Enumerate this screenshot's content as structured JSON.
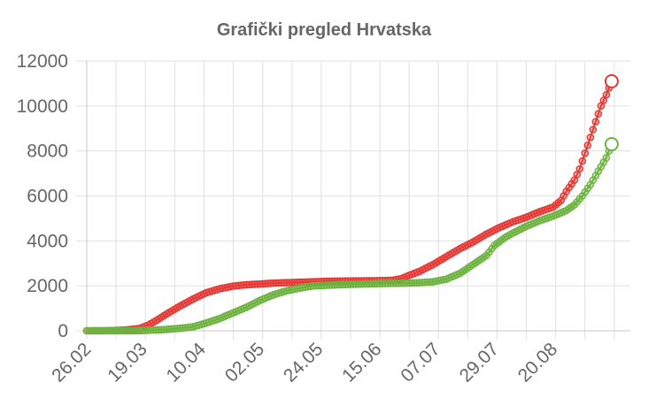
{
  "chart_data": {
    "type": "line",
    "title": "Grafički pregled Hrvatska",
    "xlabel": "",
    "ylabel": "",
    "ylim": [
      0,
      12000
    ],
    "yticks": [
      "0",
      "2000",
      "4000",
      "6000",
      "8000",
      "10000",
      "12000"
    ],
    "x_tick_labels": [
      "26.02",
      "19.03",
      "10.04",
      "02.05",
      "24.05",
      "15.06",
      "07.07",
      "29.07",
      "20.08"
    ],
    "x_tick_day_index": [
      0,
      21,
      43,
      65,
      87,
      109,
      131,
      153,
      175
    ],
    "x_day_count": 184,
    "grid": true,
    "legend": "none",
    "series": [
      {
        "color": "#e53935",
        "points": [
          [
            0,
            0
          ],
          [
            5,
            2
          ],
          [
            10,
            10
          ],
          [
            15,
            40
          ],
          [
            20,
            110
          ],
          [
            23,
            250
          ],
          [
            26,
            450
          ],
          [
            30,
            750
          ],
          [
            35,
            1100
          ],
          [
            40,
            1420
          ],
          [
            45,
            1700
          ],
          [
            50,
            1870
          ],
          [
            55,
            1990
          ],
          [
            60,
            2050
          ],
          [
            65,
            2080
          ],
          [
            70,
            2120
          ],
          [
            80,
            2160
          ],
          [
            90,
            2200
          ],
          [
            100,
            2220
          ],
          [
            110,
            2230
          ],
          [
            115,
            2250
          ],
          [
            118,
            2320
          ],
          [
            120,
            2420
          ],
          [
            125,
            2650
          ],
          [
            130,
            2950
          ],
          [
            135,
            3300
          ],
          [
            140,
            3650
          ],
          [
            145,
            3950
          ],
          [
            150,
            4300
          ],
          [
            155,
            4600
          ],
          [
            160,
            4850
          ],
          [
            165,
            5050
          ],
          [
            170,
            5300
          ],
          [
            175,
            5500
          ],
          [
            178,
            5800
          ],
          [
            180,
            6200
          ],
          [
            183,
            6700
          ],
          [
            185,
            7200
          ],
          [
            187,
            7900
          ],
          [
            189,
            8600
          ],
          [
            191,
            9300
          ],
          [
            193,
            10000
          ],
          [
            195,
            10500
          ],
          [
            197,
            11100
          ]
        ]
      },
      {
        "color": "#6db33f",
        "points": [
          [
            0,
            0
          ],
          [
            10,
            0
          ],
          [
            20,
            5
          ],
          [
            25,
            30
          ],
          [
            30,
            60
          ],
          [
            35,
            110
          ],
          [
            40,
            180
          ],
          [
            45,
            350
          ],
          [
            50,
            550
          ],
          [
            55,
            800
          ],
          [
            60,
            1050
          ],
          [
            65,
            1350
          ],
          [
            70,
            1600
          ],
          [
            75,
            1780
          ],
          [
            80,
            1900
          ],
          [
            85,
            2000
          ],
          [
            95,
            2050
          ],
          [
            110,
            2100
          ],
          [
            120,
            2120
          ],
          [
            125,
            2140
          ],
          [
            130,
            2180
          ],
          [
            135,
            2300
          ],
          [
            140,
            2550
          ],
          [
            145,
            2950
          ],
          [
            150,
            3350
          ],
          [
            153,
            3800
          ],
          [
            157,
            4150
          ],
          [
            160,
            4350
          ],
          [
            165,
            4650
          ],
          [
            170,
            4900
          ],
          [
            175,
            5100
          ],
          [
            180,
            5350
          ],
          [
            183,
            5600
          ],
          [
            186,
            6000
          ],
          [
            189,
            6500
          ],
          [
            192,
            7100
          ],
          [
            195,
            7700
          ],
          [
            197,
            8300
          ]
        ]
      }
    ]
  }
}
